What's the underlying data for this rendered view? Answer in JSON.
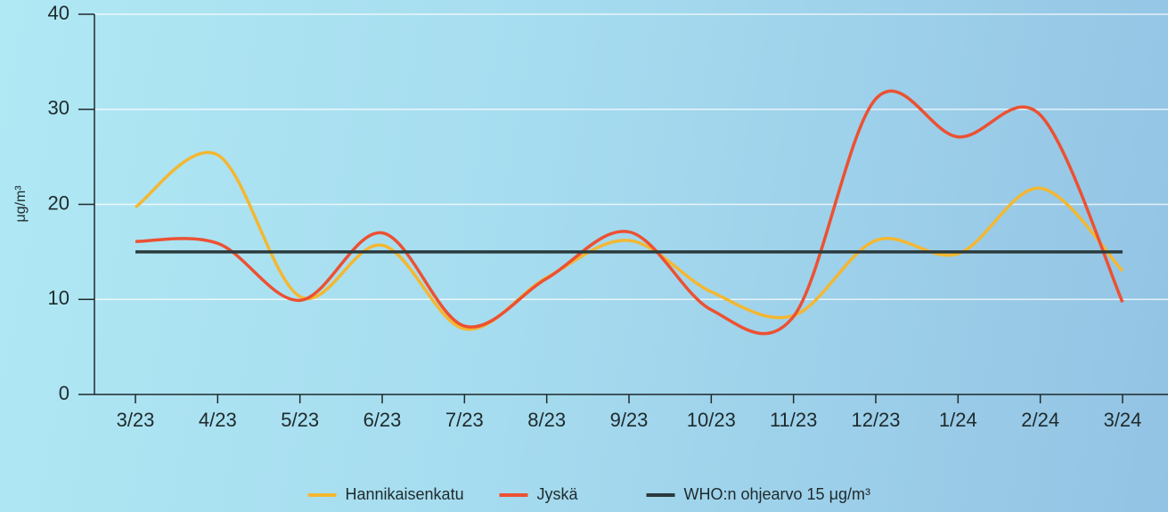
{
  "chart_data": {
    "type": "line",
    "y_label": "μg/m³",
    "categories": [
      "3/23",
      "4/23",
      "5/23",
      "6/23",
      "7/23",
      "8/23",
      "9/23",
      "10/23",
      "11/23",
      "12/23",
      "1/24",
      "2/24",
      "3/24"
    ],
    "series": [
      {
        "name": "Hannikaisenkatu",
        "color": "#f4b731",
        "values": [
          19.7,
          25.2,
          10.3,
          15.7,
          6.9,
          12.3,
          16.2,
          10.8,
          8.3,
          16.2,
          14.8,
          21.7,
          13
        ]
      },
      {
        "name": "Jyskä",
        "color": "#ec5133",
        "values": [
          16.1,
          15.9,
          9.9,
          17,
          7.2,
          12.2,
          17.1,
          8.9,
          8.2,
          31.1,
          27.1,
          29.4,
          9.7
        ]
      },
      {
        "name": "WHO:n ohjearvo 15 μg/m³",
        "color": "#2b3a3c",
        "values": [
          15,
          15,
          15,
          15,
          15,
          15,
          15,
          15,
          15,
          15,
          15,
          15,
          15
        ]
      }
    ],
    "ylim": [
      0,
      40
    ],
    "yticks": [
      0,
      10,
      20,
      30,
      40
    ],
    "grid": true,
    "legend": "bottom"
  }
}
